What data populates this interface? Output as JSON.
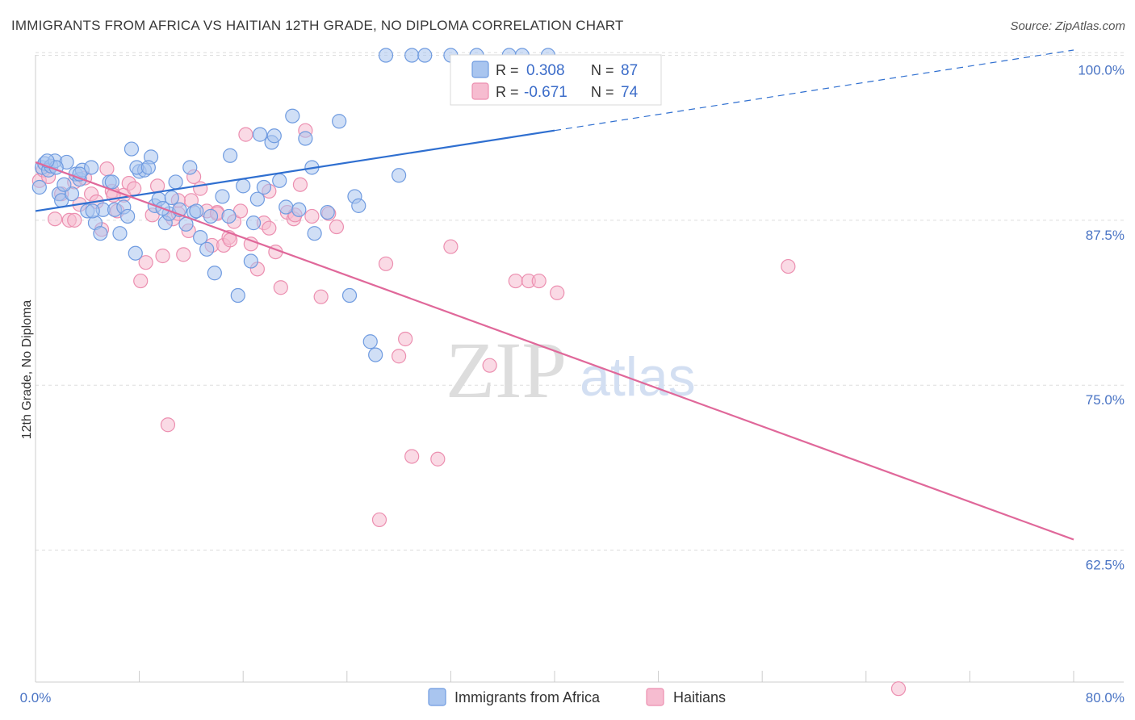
{
  "header": {
    "title": "IMMIGRANTS FROM AFRICA VS HAITIAN 12TH GRADE, NO DIPLOMA CORRELATION CHART",
    "source": "Source: ZipAtlas.com"
  },
  "watermark": {
    "zip": "ZIP",
    "atlas": "atlas"
  },
  "colors": {
    "blue_fill": "#a9c5ef",
    "blue_stroke": "#6f9be0",
    "blue_line": "#2f6fd0",
    "pink_fill": "#f6bcd0",
    "pink_stroke": "#ec8fb0",
    "pink_line": "#e0689a",
    "grid": "#dddddd",
    "tick_text": "#4a74c4"
  },
  "chart_data": {
    "type": "scatter",
    "title": "IMMIGRANTS FROM AFRICA VS HAITIAN 12TH GRADE, NO DIPLOMA CORRELATION CHART",
    "xlabel": "",
    "ylabel": "12th Grade, No Diploma",
    "xlim": [
      0,
      80
    ],
    "ylim": [
      52.5,
      101.5
    ],
    "x_tick_labels": [
      "0.0%",
      "80.0%"
    ],
    "y_ticks": [
      {
        "value": 100,
        "label": "100.0%"
      },
      {
        "value": 87.5,
        "label": "87.5%"
      },
      {
        "value": 75,
        "label": "75.0%"
      },
      {
        "value": 62.5,
        "label": "62.5%"
      }
    ],
    "legend": [
      {
        "series": "Immigrants from Africa",
        "r_label": "R =",
        "r_value": "0.308",
        "n_label": "N =",
        "n_value": "87"
      },
      {
        "series": "Haitians",
        "r_label": "R =",
        "r_value": "-0.671",
        "n_label": "N =",
        "n_value": "74"
      }
    ],
    "series": [
      {
        "name": "Immigrants from Africa",
        "trend": {
          "x0": 0,
          "y0": 88.2,
          "x1": 40,
          "y1": 94.3,
          "dash_x1": 80,
          "dash_y1": 100.4
        },
        "points": [
          [
            0.3,
            90.0
          ],
          [
            0.5,
            91.5
          ],
          [
            0.7,
            91.8
          ],
          [
            1.0,
            91.3
          ],
          [
            1.2,
            91.6
          ],
          [
            1.5,
            92.0
          ],
          [
            1.8,
            89.5
          ],
          [
            2.0,
            89.0
          ],
          [
            2.4,
            91.9
          ],
          [
            2.8,
            89.5
          ],
          [
            3.1,
            91.0
          ],
          [
            3.4,
            90.6
          ],
          [
            3.6,
            91.3
          ],
          [
            4.0,
            88.2
          ],
          [
            4.3,
            91.5
          ],
          [
            4.6,
            87.3
          ],
          [
            5.0,
            86.5
          ],
          [
            5.2,
            88.3
          ],
          [
            5.7,
            90.4
          ],
          [
            6.1,
            88.3
          ],
          [
            6.5,
            86.5
          ],
          [
            6.8,
            88.5
          ],
          [
            7.1,
            87.8
          ],
          [
            7.4,
            92.9
          ],
          [
            7.7,
            85.0
          ],
          [
            8.0,
            91.2
          ],
          [
            8.4,
            91.3
          ],
          [
            8.9,
            92.3
          ],
          [
            9.2,
            88.6
          ],
          [
            9.5,
            89.1
          ],
          [
            10.0,
            87.3
          ],
          [
            10.3,
            88.0
          ],
          [
            10.8,
            90.4
          ],
          [
            11.1,
            88.3
          ],
          [
            11.6,
            87.2
          ],
          [
            12.2,
            88.1
          ],
          [
            12.7,
            86.2
          ],
          [
            13.2,
            85.3
          ],
          [
            13.8,
            83.5
          ],
          [
            14.4,
            89.3
          ],
          [
            14.9,
            87.8
          ],
          [
            15.6,
            81.8
          ],
          [
            16.0,
            90.1
          ],
          [
            16.6,
            84.4
          ],
          [
            17.1,
            89.1
          ],
          [
            17.6,
            90.0
          ],
          [
            18.2,
            93.4
          ],
          [
            18.8,
            90.5
          ],
          [
            19.3,
            88.5
          ],
          [
            19.8,
            95.4
          ],
          [
            20.3,
            88.3
          ],
          [
            20.8,
            93.7
          ],
          [
            21.5,
            86.5
          ],
          [
            22.5,
            88.1
          ],
          [
            23.4,
            95.0
          ],
          [
            24.2,
            81.8
          ],
          [
            24.6,
            89.3
          ],
          [
            24.9,
            88.6
          ],
          [
            25.8,
            78.3
          ],
          [
            26.2,
            77.3
          ],
          [
            27.0,
            100.0
          ],
          [
            29.0,
            100.0
          ],
          [
            30.0,
            100.0
          ],
          [
            32.0,
            100.0
          ],
          [
            34.0,
            100.0
          ],
          [
            36.5,
            100.0
          ],
          [
            37.5,
            100.0
          ],
          [
            39.5,
            100.0
          ],
          [
            16.8,
            87.3
          ],
          [
            12.4,
            88.2
          ],
          [
            11.9,
            91.5
          ],
          [
            13.5,
            87.8
          ],
          [
            7.8,
            91.5
          ],
          [
            8.7,
            91.5
          ],
          [
            5.9,
            90.4
          ],
          [
            4.4,
            88.2
          ],
          [
            3.4,
            91.0
          ],
          [
            1.6,
            91.5
          ],
          [
            17.3,
            94.0
          ],
          [
            15.0,
            92.4
          ],
          [
            18.4,
            93.9
          ],
          [
            21.3,
            91.5
          ],
          [
            9.8,
            88.4
          ],
          [
            10.5,
            89.2
          ],
          [
            2.2,
            90.2
          ],
          [
            0.9,
            92.0
          ],
          [
            28.0,
            90.9
          ]
        ]
      },
      {
        "name": "Haitians",
        "trend": {
          "x0": 0,
          "y0": 91.9,
          "x1": 80,
          "y1": 63.3
        },
        "points": [
          [
            0.3,
            90.5
          ],
          [
            0.6,
            91.3
          ],
          [
            1.0,
            90.8
          ],
          [
            1.5,
            87.6
          ],
          [
            2.0,
            89.5
          ],
          [
            2.6,
            87.5
          ],
          [
            3.0,
            90.4
          ],
          [
            3.4,
            88.7
          ],
          [
            3.8,
            90.7
          ],
          [
            4.3,
            89.5
          ],
          [
            4.7,
            88.9
          ],
          [
            5.1,
            86.8
          ],
          [
            5.5,
            91.4
          ],
          [
            5.9,
            89.7
          ],
          [
            6.3,
            88.2
          ],
          [
            6.8,
            89.4
          ],
          [
            7.2,
            90.3
          ],
          [
            7.6,
            89.9
          ],
          [
            8.1,
            82.9
          ],
          [
            8.5,
            84.3
          ],
          [
            9.0,
            87.9
          ],
          [
            9.4,
            90.1
          ],
          [
            9.8,
            84.8
          ],
          [
            10.2,
            72.0
          ],
          [
            10.6,
            87.6
          ],
          [
            11.0,
            88.0
          ],
          [
            11.4,
            84.9
          ],
          [
            11.8,
            86.7
          ],
          [
            12.2,
            90.8
          ],
          [
            12.7,
            89.9
          ],
          [
            13.2,
            88.2
          ],
          [
            13.6,
            85.6
          ],
          [
            14.0,
            88.1
          ],
          [
            14.5,
            85.6
          ],
          [
            14.9,
            86.2
          ],
          [
            15.3,
            87.4
          ],
          [
            15.8,
            88.2
          ],
          [
            16.2,
            94.0
          ],
          [
            16.6,
            85.7
          ],
          [
            17.1,
            83.8
          ],
          [
            17.6,
            87.3
          ],
          [
            18.0,
            89.7
          ],
          [
            18.5,
            85.1
          ],
          [
            18.9,
            82.4
          ],
          [
            19.4,
            88.1
          ],
          [
            19.9,
            87.6
          ],
          [
            20.4,
            90.2
          ],
          [
            20.8,
            94.3
          ],
          [
            21.3,
            87.8
          ],
          [
            22.0,
            81.7
          ],
          [
            22.6,
            88.0
          ],
          [
            23.2,
            87.0
          ],
          [
            26.5,
            64.8
          ],
          [
            27.0,
            84.2
          ],
          [
            28.0,
            77.2
          ],
          [
            28.5,
            78.5
          ],
          [
            29.0,
            69.6
          ],
          [
            31.0,
            69.4
          ],
          [
            32.0,
            85.5
          ],
          [
            35.0,
            76.5
          ],
          [
            37.0,
            82.9
          ],
          [
            38.0,
            82.9
          ],
          [
            38.8,
            82.9
          ],
          [
            40.2,
            82.0
          ],
          [
            58.0,
            84.0
          ],
          [
            66.5,
            52.0
          ],
          [
            12.0,
            89.0
          ],
          [
            6.0,
            89.4
          ],
          [
            3.0,
            87.5
          ],
          [
            14.0,
            88.0
          ],
          [
            15.0,
            86.0
          ],
          [
            20.0,
            87.9
          ],
          [
            11.0,
            89.0
          ],
          [
            18.0,
            86.9
          ]
        ]
      }
    ]
  }
}
